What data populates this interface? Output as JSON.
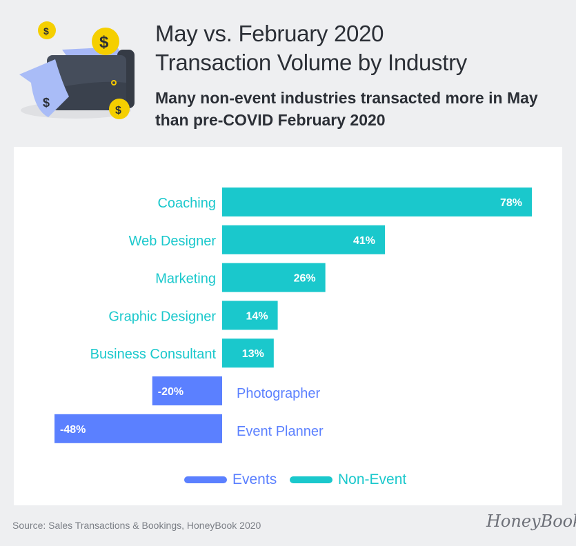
{
  "title_line1": "May vs. February 2020",
  "title_line2": "Transaction Volume by Industry",
  "subtitle": "Many non-event industries transacted more in May than pre-COVID February 2020",
  "source": "Source: Sales Transactions & Bookings, HoneyBook 2020",
  "logo": "HoneyBook",
  "colors": {
    "events": "#5b80ff",
    "non_event": "#1ac8cc"
  },
  "chart_data": {
    "type": "bar",
    "orientation": "horizontal",
    "categories": [
      "Coaching",
      "Web Designer",
      "Marketing",
      "Graphic Designer",
      "Business Consultant",
      "Photographer",
      "Event Planner"
    ],
    "values": [
      78,
      41,
      26,
      14,
      13,
      -20,
      -48
    ],
    "data_labels": [
      "78%",
      "41%",
      "26%",
      "14%",
      "13%",
      "-20%",
      "-48%"
    ],
    "groups": [
      "Non-Event",
      "Non-Event",
      "Non-Event",
      "Non-Event",
      "Non-Event",
      "Events",
      "Events"
    ],
    "unit": "%",
    "legend": [
      {
        "name": "Events",
        "color": "#5b80ff"
      },
      {
        "name": "Non-Event",
        "color": "#1ac8cc"
      }
    ],
    "legend_position": "bottom",
    "grid": false
  }
}
